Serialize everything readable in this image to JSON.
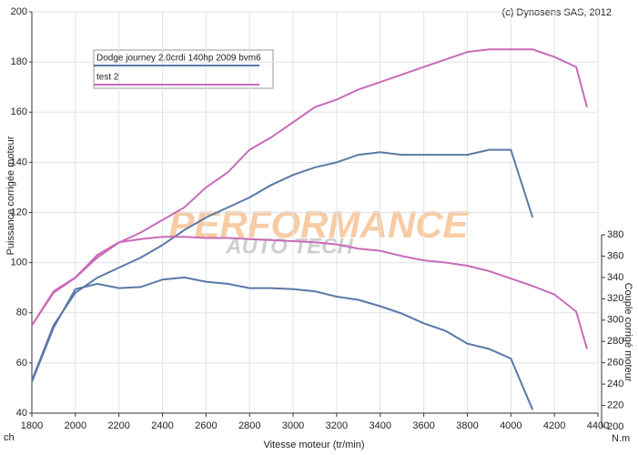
{
  "chart_data": {
    "type": "line",
    "copyright": "(c) Dynosens SAS, 2012",
    "watermark": [
      "PERFORMANCE",
      "AUTO TECH"
    ],
    "x_label": "Vitesse moteur (tr/min)",
    "y_label": "Puissance corrigée moteur",
    "y_unit": "ch",
    "y2_label": "Couple corrigé moteur",
    "y2_unit": "N.m",
    "x": [
      1800,
      1900,
      2000,
      2100,
      2200,
      2300,
      2400,
      2500,
      2600,
      2700,
      2800,
      2900,
      3000,
      3100,
      3200,
      3300,
      3400,
      3500,
      3600,
      3700,
      3800,
      3900,
      4000,
      4100,
      4200,
      4300,
      4350
    ],
    "xlim": [
      1800,
      4400
    ],
    "xticks": [
      1800,
      2000,
      2200,
      2400,
      2600,
      2800,
      3000,
      3200,
      3400,
      3600,
      3800,
      4000,
      4200,
      4400
    ],
    "ylim": [
      40,
      200
    ],
    "yticks": [
      40,
      60,
      80,
      100,
      120,
      140,
      160,
      180,
      200
    ],
    "y2lim": [
      200,
      380
    ],
    "y2ticks": [
      200,
      220,
      240,
      260,
      280,
      300,
      320,
      340,
      360,
      380
    ],
    "grid": true,
    "legend": "top-left",
    "series": [
      {
        "name": "Dodge journey 2.0crdi 140hp 2009 bvm6",
        "color": "#5b78a8",
        "values": [
          53,
          75,
          88,
          94,
          98,
          102,
          107,
          113,
          118,
          122,
          126,
          131,
          135,
          138,
          140,
          143,
          144,
          143,
          143,
          143,
          143,
          145,
          145,
          118,
          null,
          null,
          null
        ],
        "y2_values": [
          242,
          293,
          329,
          334,
          330,
          331,
          338,
          340,
          336,
          334,
          330,
          330,
          329,
          327,
          322,
          319,
          313,
          306,
          297,
          290,
          278,
          273,
          264,
          216,
          null,
          null,
          null
        ]
      },
      {
        "name": "test 2",
        "color": "#c86bb8",
        "values": [
          75,
          88,
          94,
          102,
          108,
          112,
          117,
          122,
          130,
          136,
          145,
          150,
          156,
          162,
          165,
          169,
          172,
          175,
          178,
          181,
          184,
          185,
          185,
          185,
          182,
          178,
          162
        ],
        "y2_values": [
          295,
          327,
          340,
          361,
          373,
          376,
          378,
          378,
          377,
          377,
          376,
          375,
          374,
          373,
          371,
          367,
          365,
          360,
          356,
          354,
          351,
          346,
          339,
          332,
          324,
          308,
          273
        ]
      }
    ]
  }
}
